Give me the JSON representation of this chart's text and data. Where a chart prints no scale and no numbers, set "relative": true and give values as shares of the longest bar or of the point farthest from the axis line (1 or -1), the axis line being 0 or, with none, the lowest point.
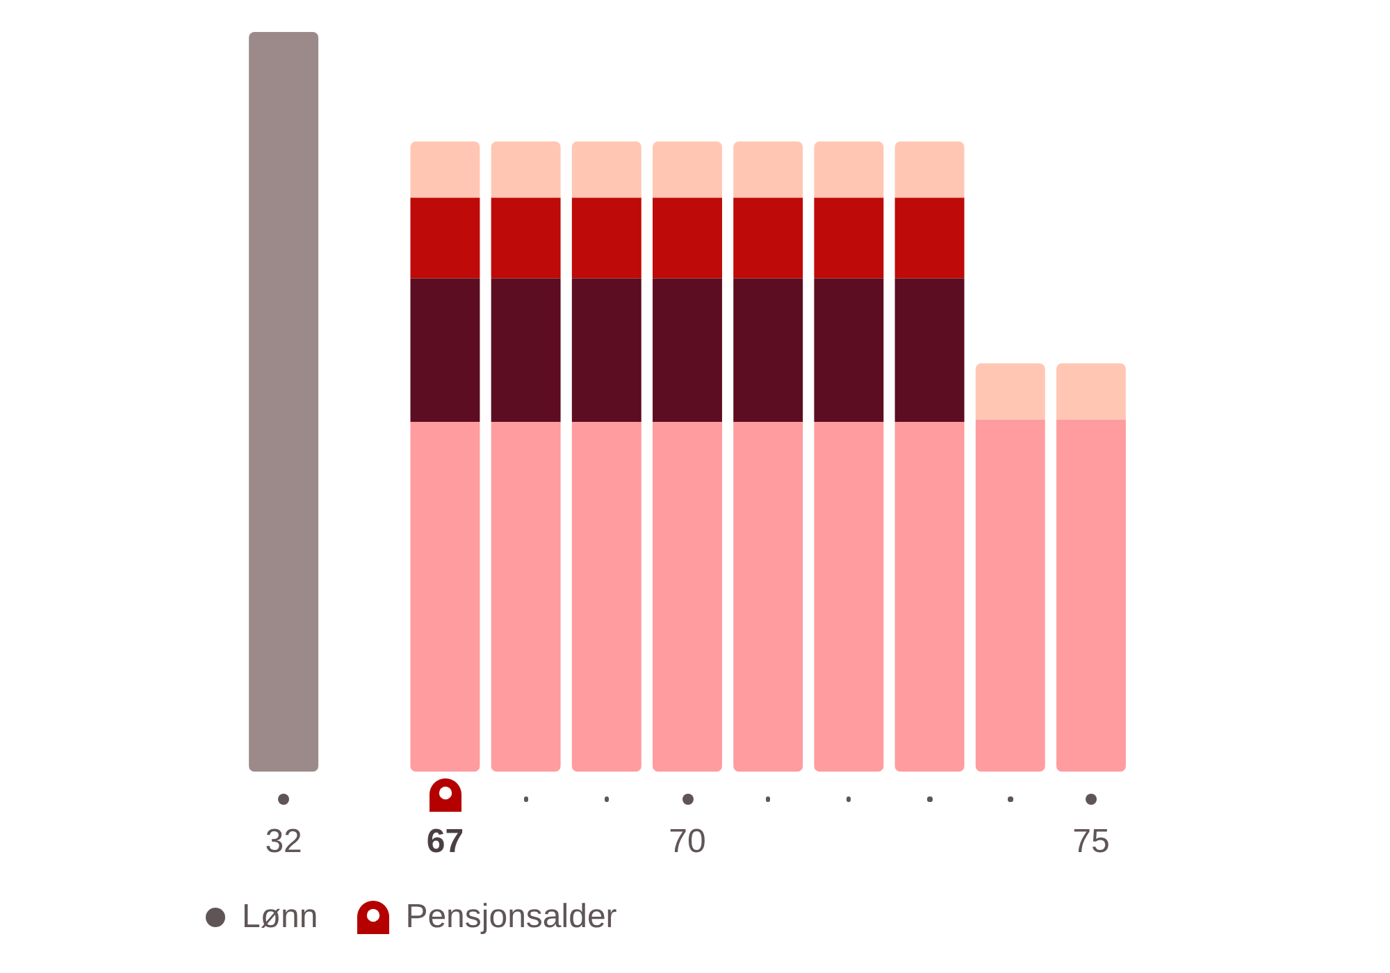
{
  "chart_data": {
    "type": "bar",
    "stacked": true,
    "relative": true,
    "categories": [
      "32",
      null,
      "67",
      null,
      null,
      "70",
      null,
      null,
      null,
      null,
      "75"
    ],
    "series": [
      {
        "color": "#9b8a89",
        "values": [
          1,
          null,
          null,
          null,
          null,
          null,
          null,
          null,
          null,
          null,
          null
        ]
      },
      {
        "color": "#fe9c9f",
        "values": [
          null,
          null,
          0.473,
          0.473,
          0.473,
          0.473,
          0.473,
          0.473,
          0.473,
          0.476,
          0.476
        ]
      },
      {
        "color": "#5c0d22",
        "values": [
          null,
          null,
          0.194,
          0.194,
          0.194,
          0.194,
          0.194,
          0.194,
          0.194,
          null,
          null
        ]
      },
      {
        "color": "#be0a08",
        "values": [
          null,
          null,
          0.109,
          0.109,
          0.109,
          0.109,
          0.109,
          0.109,
          0.109,
          null,
          null
        ]
      },
      {
        "color": "#ffc7b3",
        "values": [
          null,
          null,
          0.076,
          0.076,
          0.076,
          0.076,
          0.076,
          0.076,
          0.076,
          0.076,
          0.076
        ]
      }
    ],
    "annotations": [
      "Lønn",
      "Pensjonsalder"
    ]
  }
}
